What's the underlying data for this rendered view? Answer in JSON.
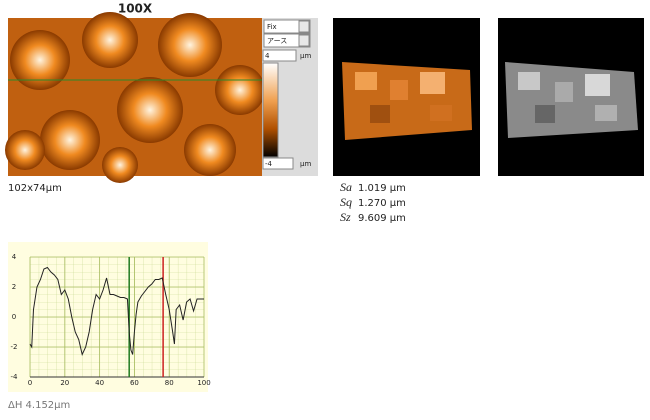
{
  "header": {
    "title": "100X"
  },
  "image_panel": {
    "mode": "Fix",
    "color_map": "アース",
    "scale_max": {
      "value": "4",
      "unit": "μm"
    },
    "scale_min": {
      "value": "-4",
      "unit": "μm"
    },
    "size": "102x74μm"
  },
  "stats": [
    {
      "label": "Sa",
      "value": "1.019 μm"
    },
    {
      "label": "Sq",
      "value": "1.270 μm"
    },
    {
      "label": "Sz",
      "value": "9.609 μm"
    }
  ],
  "chart_data": {
    "type": "line",
    "color": "#222222",
    "x": [
      0,
      1,
      2,
      4,
      6,
      8,
      10,
      12,
      14,
      16,
      18,
      20,
      22,
      24,
      26,
      28,
      30,
      32,
      34,
      36,
      38,
      40,
      42,
      44,
      46,
      48,
      50,
      52,
      54,
      56,
      57,
      58,
      59,
      60,
      61,
      62,
      64,
      66,
      68,
      70,
      72,
      74,
      76,
      78,
      80,
      82,
      83,
      84,
      86,
      88,
      90,
      92,
      94,
      96,
      98,
      100
    ],
    "values": [
      -1.8,
      -2,
      0.5,
      2,
      2.5,
      3.2,
      3.3,
      3,
      2.8,
      2.5,
      1.5,
      1.8,
      1.2,
      0,
      -1,
      -1.5,
      -2.5,
      -2,
      -1,
      0.5,
      1.5,
      1.2,
      1.8,
      2.6,
      1.5,
      1.5,
      1.4,
      1.3,
      1.3,
      1.2,
      -1,
      -2.2,
      -2.5,
      -1,
      0.2,
      1,
      1.4,
      1.7,
      2,
      2.2,
      2.5,
      2.5,
      2.6,
      1.5,
      0.5,
      -1,
      -1.8,
      0.5,
      0.8,
      -0.2,
      1,
      1.2,
      0.4,
      1.2,
      1.2,
      1.2
    ],
    "xlim": [
      0,
      100
    ],
    "ylim": [
      -4,
      4
    ],
    "xticks": [
      0,
      20,
      40,
      60,
      80,
      100
    ],
    "yticks": [
      4,
      2,
      0,
      -2,
      -4
    ],
    "grid": true,
    "cursors": [
      {
        "value": 57,
        "color": "#1e7a1e"
      },
      {
        "value": 76.5,
        "color": "#cc2020"
      }
    ],
    "annotation": "ΔH 4.152μm"
  }
}
